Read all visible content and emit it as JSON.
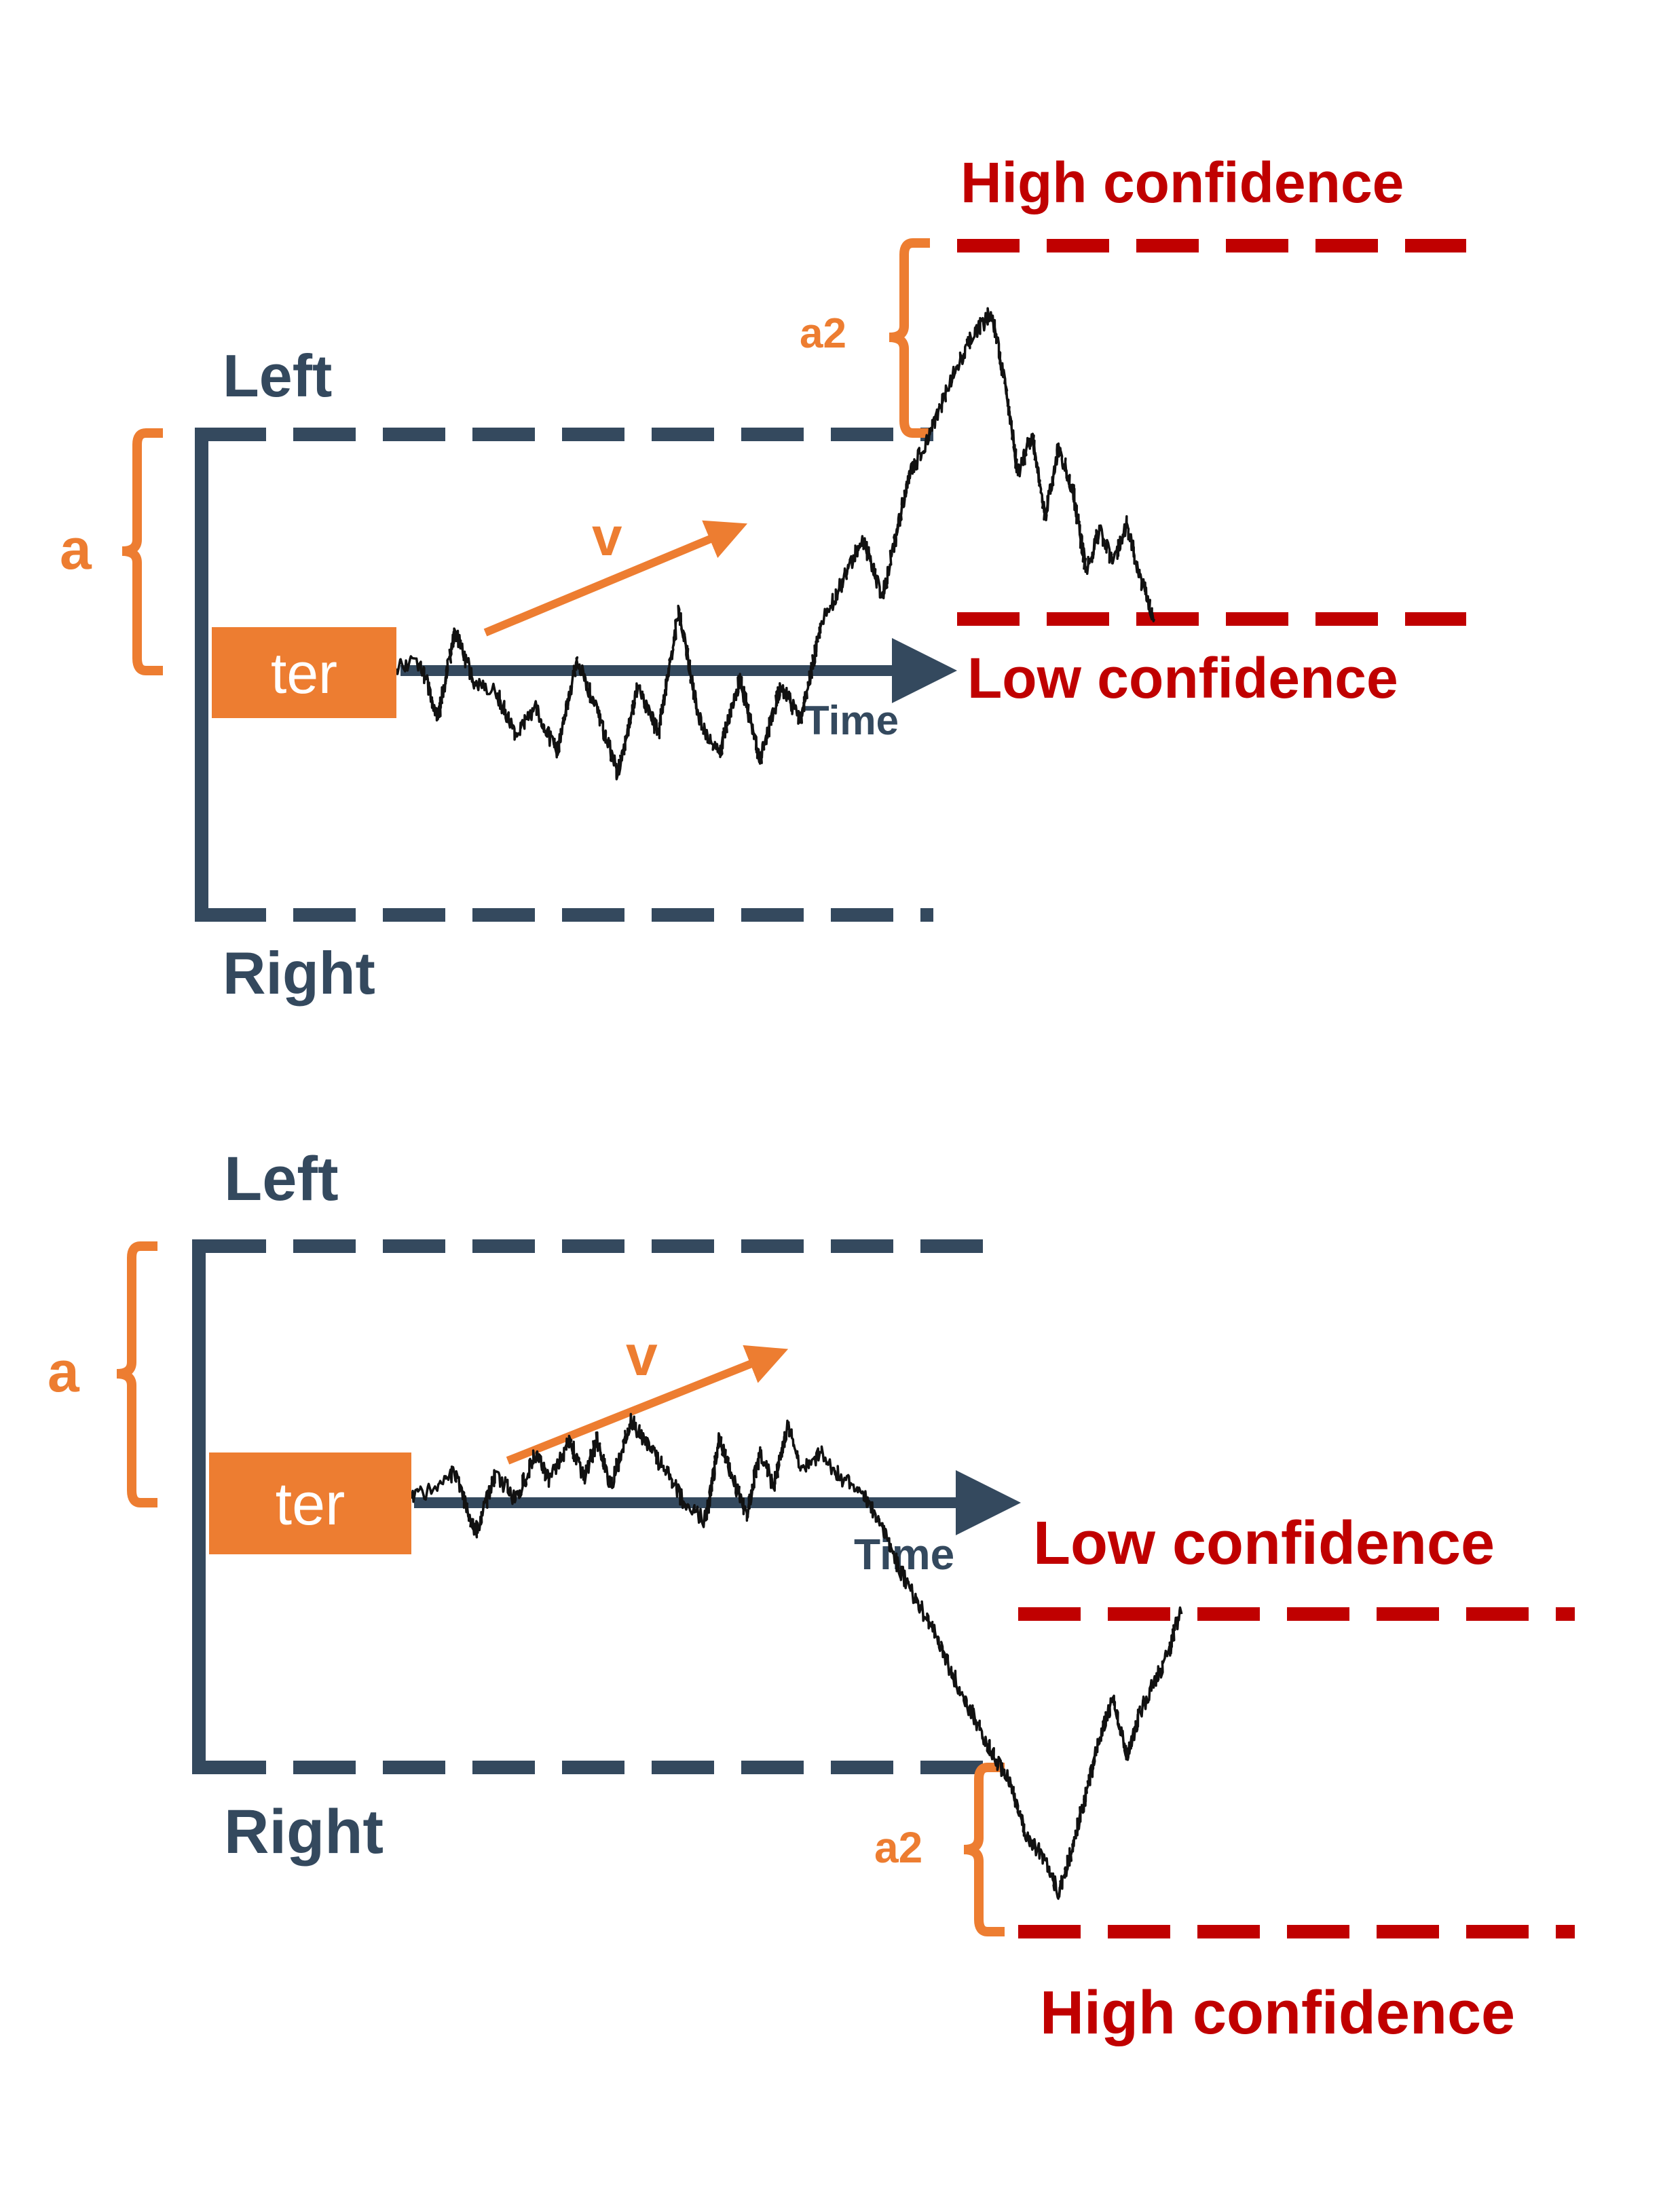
{
  "colors": {
    "boundary": "#34495e",
    "parameter": "#ed7d31",
    "confidence": "#c00000",
    "trace": "#111111"
  },
  "panels": [
    {
      "left_label": "Left",
      "right_label": "Right",
      "a_label": "a",
      "a2_label": "a2",
      "v_label": "v",
      "ter_label": "ter",
      "time_label": "Time",
      "high_label": "High confidence",
      "low_label": "Low confidence"
    },
    {
      "left_label": "Left",
      "right_label": "Right",
      "a_label": "a",
      "a2_label": "a2",
      "v_label": "v",
      "ter_label": "ter",
      "time_label": "Time",
      "high_label": "High confidence",
      "low_label": "Low confidence"
    }
  ]
}
